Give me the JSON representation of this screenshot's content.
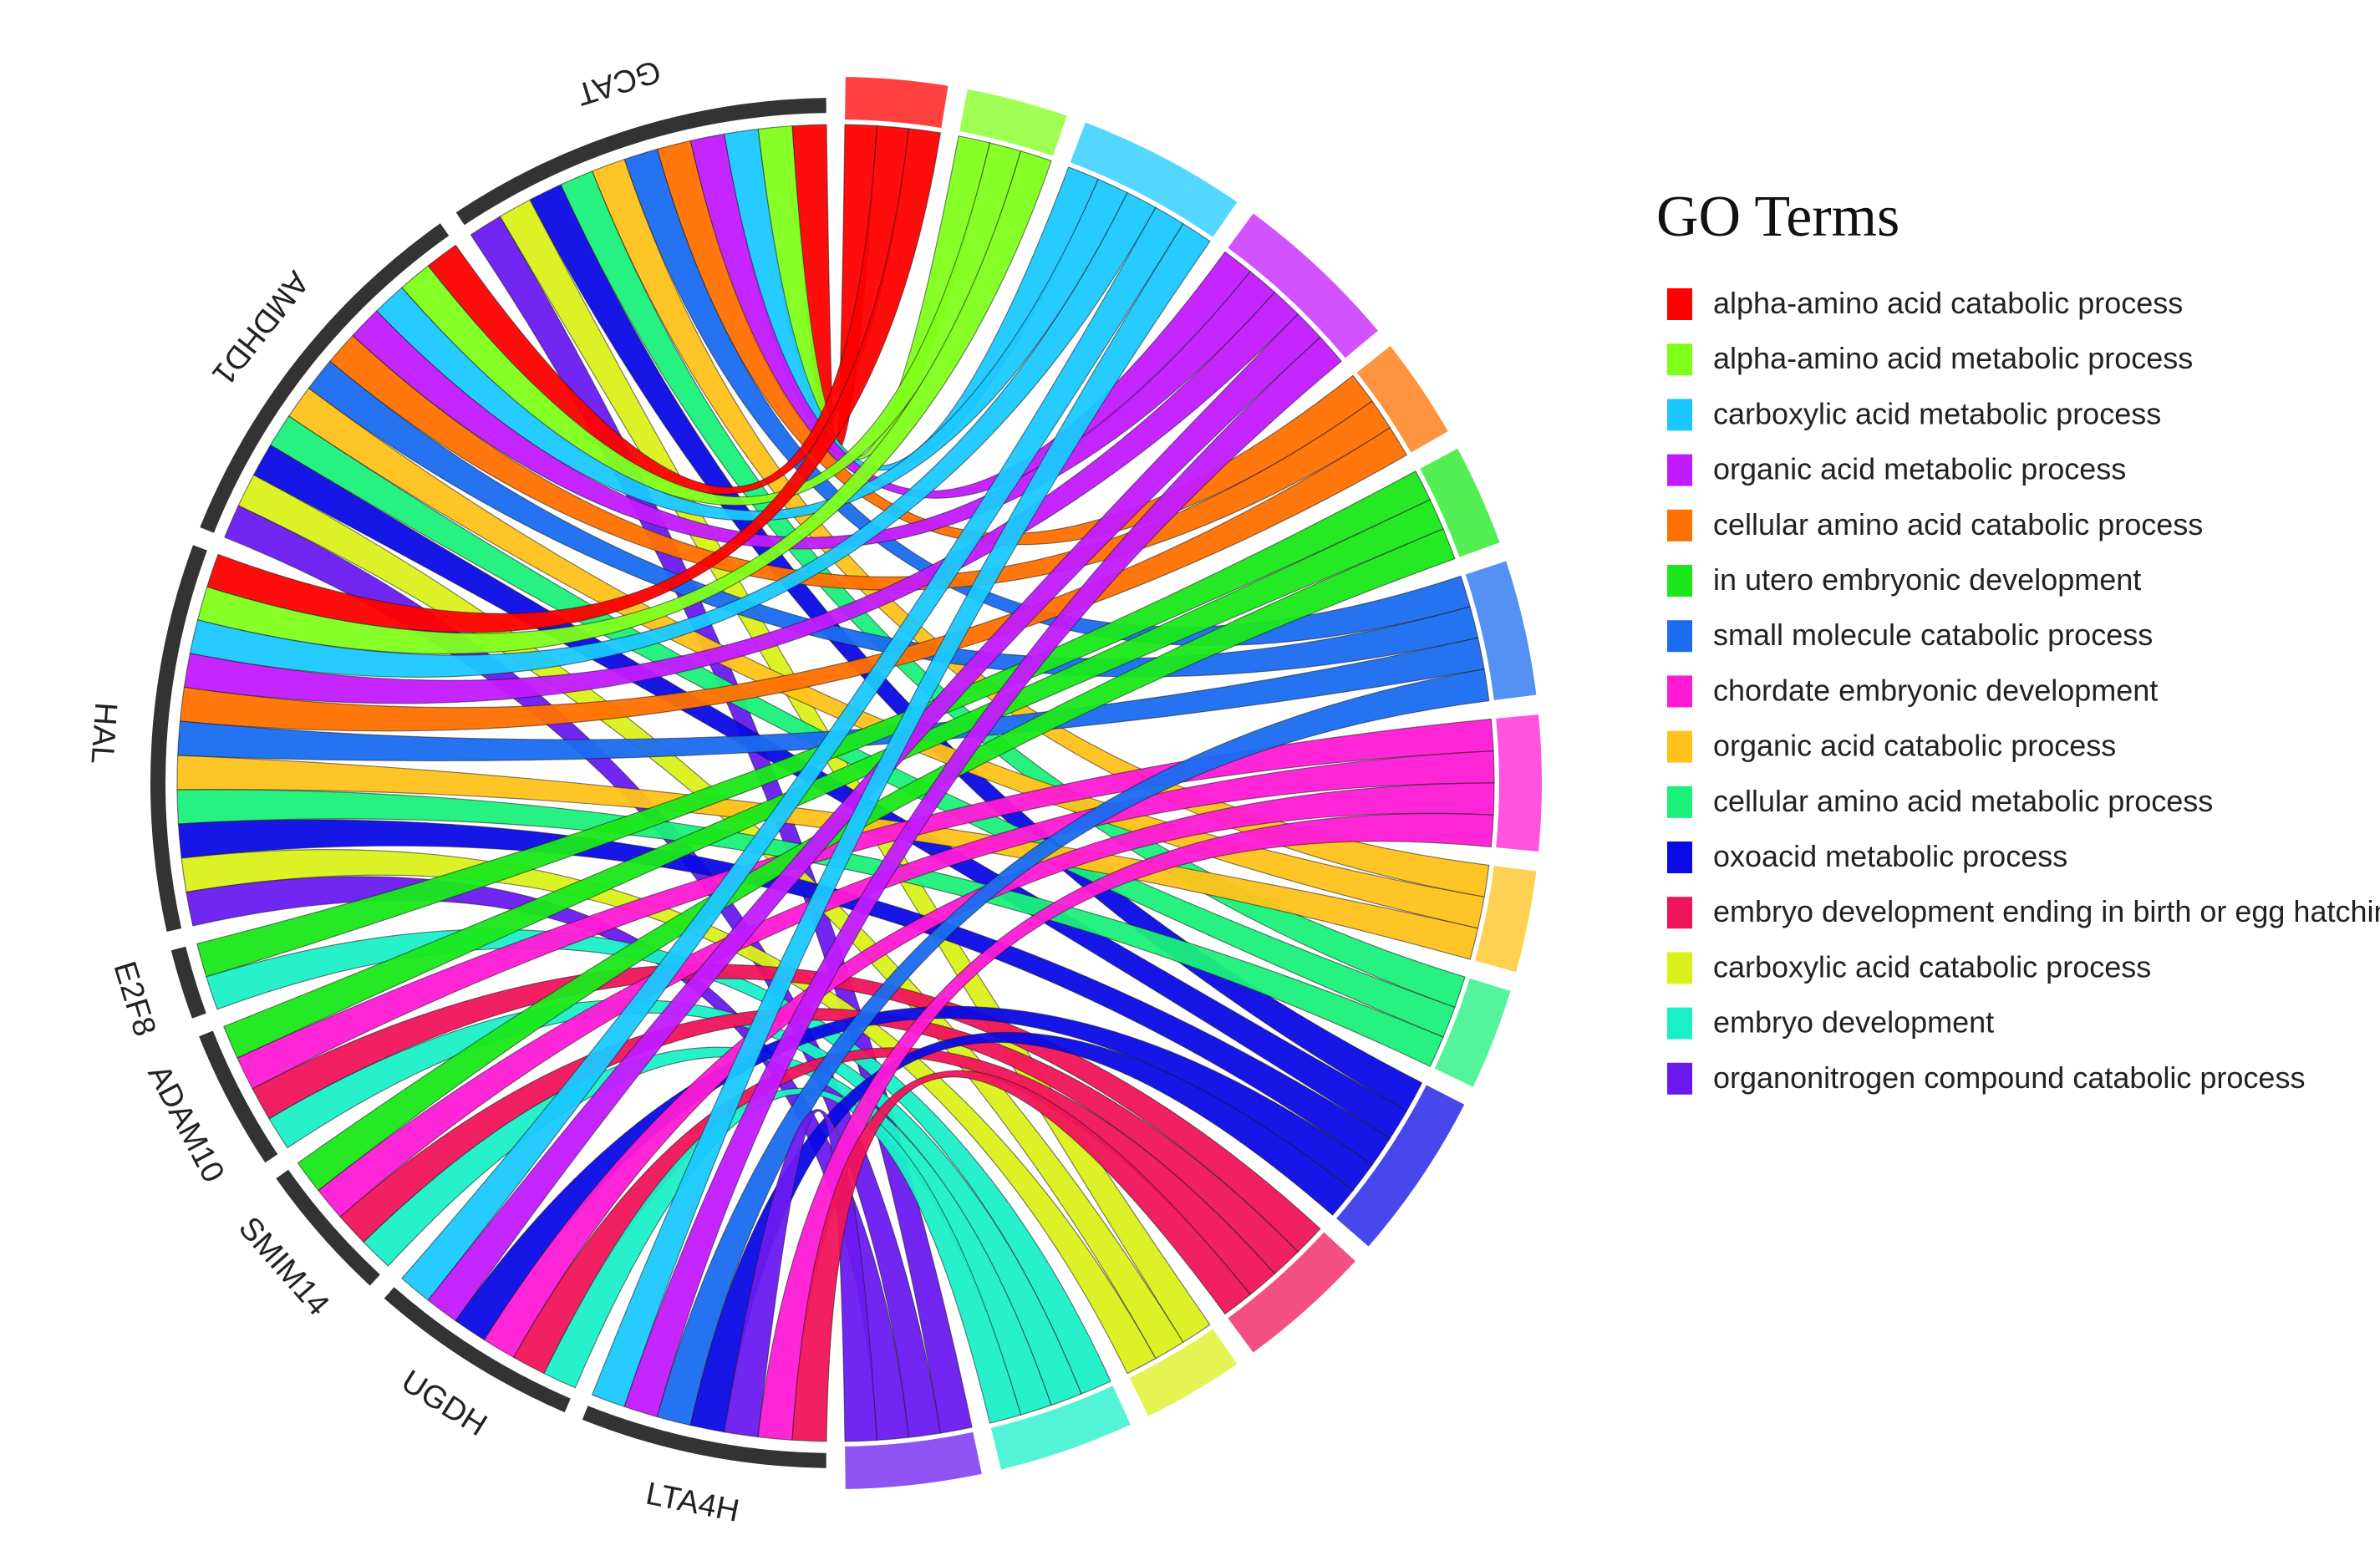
{
  "chart_data": {
    "type": "chord",
    "title": "",
    "legend_title": "GO Terms",
    "legend_position": "right",
    "genes": [
      "GCAT",
      "AMDHD1",
      "HAL",
      "E2F8",
      "ADAM10",
      "SMIM14",
      "UGDH",
      "LTA4H"
    ],
    "gene_color": "#333333",
    "terms": [
      {
        "name": "alpha-amino acid catabolic process",
        "color": "#FF0000"
      },
      {
        "name": "alpha-amino acid metabolic process",
        "color": "#7FFF1A"
      },
      {
        "name": "carboxylic acid metabolic process",
        "color": "#1AC8FF"
      },
      {
        "name": "organic acid metabolic process",
        "color": "#C21AFF"
      },
      {
        "name": "cellular amino acid catabolic process",
        "color": "#FF7000"
      },
      {
        "name": "in utero embryonic development",
        "color": "#1AE81A"
      },
      {
        "name": "small molecule catabolic process",
        "color": "#1A6CF0"
      },
      {
        "name": "chordate embryonic development",
        "color": "#FF1AD6"
      },
      {
        "name": "organic acid catabolic process",
        "color": "#FFC21A"
      },
      {
        "name": "cellular amino acid metabolic process",
        "color": "#1AF07A"
      },
      {
        "name": "oxoacid metabolic process",
        "color": "#0A0AE6"
      },
      {
        "name": "embryo development ending in birth or egg hatching",
        "color": "#F0145A"
      },
      {
        "name": "carboxylic acid catabolic process",
        "color": "#DAF01A"
      },
      {
        "name": "embryo development",
        "color": "#1AF0C8"
      },
      {
        "name": "organonitrogen compound catabolic process",
        "color": "#6A1AF0"
      }
    ],
    "links": {
      "GCAT": [
        "alpha-amino acid catabolic process",
        "alpha-amino acid metabolic process",
        "carboxylic acid metabolic process",
        "organic acid metabolic process",
        "cellular amino acid catabolic process",
        "small molecule catabolic process",
        "organic acid catabolic process",
        "cellular amino acid metabolic process",
        "oxoacid metabolic process",
        "carboxylic acid catabolic process",
        "organonitrogen compound catabolic process"
      ],
      "AMDHD1": [
        "alpha-amino acid catabolic process",
        "alpha-amino acid metabolic process",
        "carboxylic acid metabolic process",
        "organic acid metabolic process",
        "cellular amino acid catabolic process",
        "small molecule catabolic process",
        "organic acid catabolic process",
        "cellular amino acid metabolic process",
        "oxoacid metabolic process",
        "carboxylic acid catabolic process",
        "organonitrogen compound catabolic process"
      ],
      "HAL": [
        "alpha-amino acid catabolic process",
        "alpha-amino acid metabolic process",
        "carboxylic acid metabolic process",
        "organic acid metabolic process",
        "cellular amino acid catabolic process",
        "small molecule catabolic process",
        "organic acid catabolic process",
        "cellular amino acid metabolic process",
        "oxoacid metabolic process",
        "carboxylic acid catabolic process",
        "organonitrogen compound catabolic process"
      ],
      "E2F8": [
        "in utero embryonic development",
        "embryo development"
      ],
      "ADAM10": [
        "in utero embryonic development",
        "chordate embryonic development",
        "embryo development ending in birth or egg hatching",
        "embryo development"
      ],
      "SMIM14": [
        "in utero embryonic development",
        "chordate embryonic development",
        "embryo development ending in birth or egg hatching",
        "embryo development"
      ],
      "UGDH": [
        "carboxylic acid metabolic process",
        "organic acid metabolic process",
        "oxoacid metabolic process",
        "chordate embryonic development",
        "embryo development ending in birth or egg hatching",
        "embryo development"
      ],
      "LTA4H": [
        "carboxylic acid metabolic process",
        "organic acid metabolic process",
        "small molecule catabolic process",
        "oxoacid metabolic process",
        "organonitrogen compound catabolic process",
        "chordate embryonic development",
        "embryo development ending in birth or egg hatching"
      ]
    }
  }
}
